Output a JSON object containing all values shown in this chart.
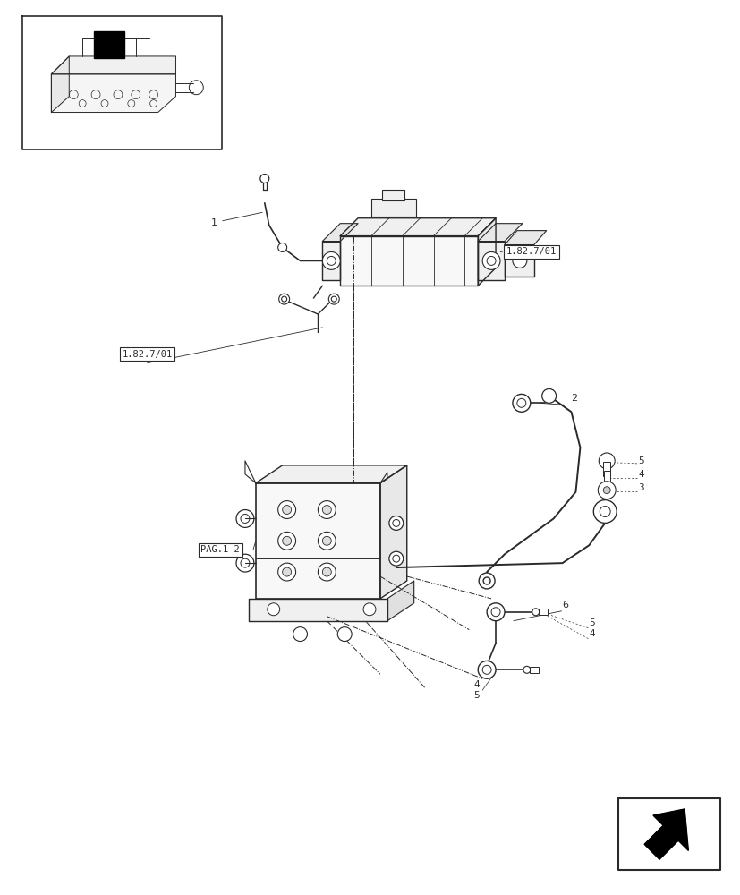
{
  "bg_color": "#ffffff",
  "line_color": "#2a2a2a",
  "page_width": 8.28,
  "page_height": 10.0,
  "dpi": 100,
  "ref_box1_text": "1.82.7/01",
  "ref_box2_text": "1.82.7/01",
  "pag_box_text": "PAG.1-2"
}
